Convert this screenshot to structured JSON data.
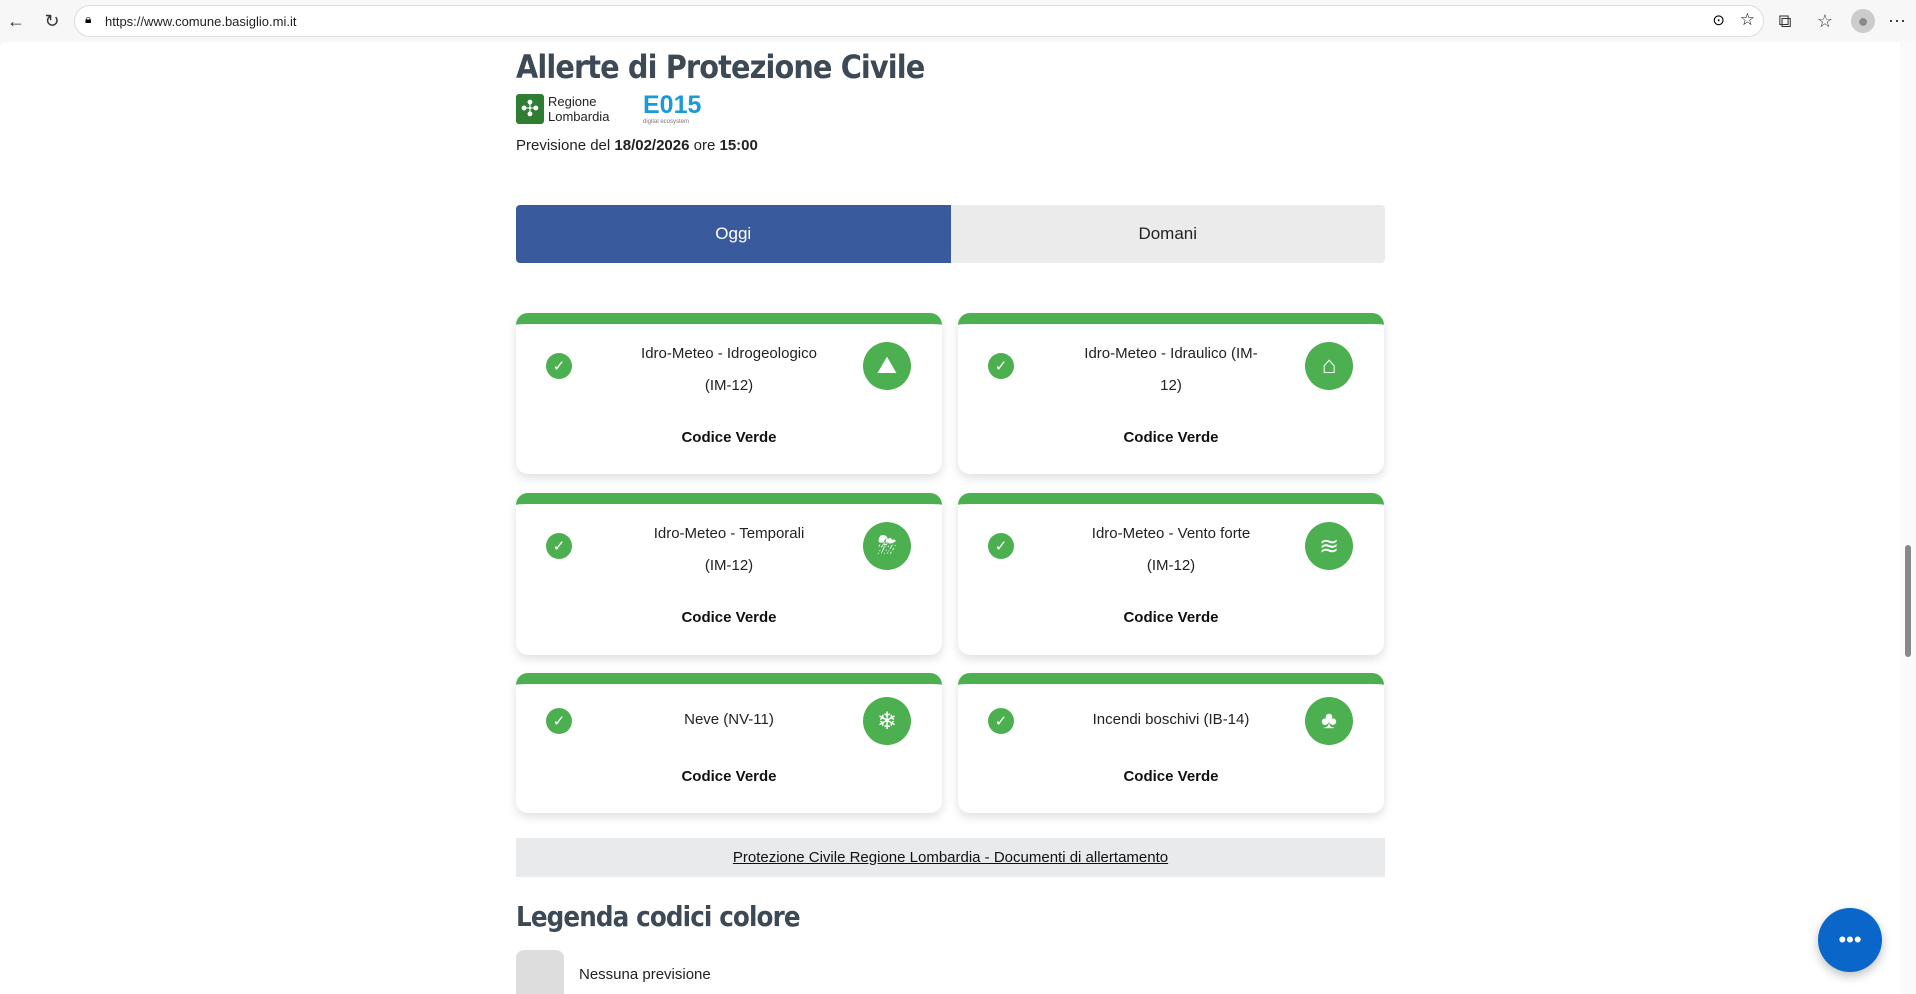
{
  "browser": {
    "url": "https://www.comune.basiglio.mi.it"
  },
  "header": {
    "title": "Allerte di Protezione Civile",
    "logo_regione": "Regione Lombardia",
    "logo_e015": "E015",
    "logo_e015_sub": "digital ecosystem",
    "forecast_prefix": "Previsione del",
    "forecast_date": "18/02/2026",
    "forecast_mid": "ore",
    "forecast_time": "15:00"
  },
  "tabs": [
    {
      "label": "Oggi",
      "active": true
    },
    {
      "label": "Domani",
      "active": false
    }
  ],
  "accent": "#3a5a9e",
  "green": "#4caf50",
  "cards": [
    {
      "line1": "Idro-Meteo - Idrogeologico",
      "line2": "(IM-12)",
      "code": "Codice Verde",
      "icon": "landslide-icon"
    },
    {
      "line1": "Idro-Meteo - Idraulico (IM-",
      "line2": "12)",
      "code": "Codice Verde",
      "icon": "flood-house-icon"
    },
    {
      "line1": "Idro-Meteo - Temporali",
      "line2": "(IM-12)",
      "code": "Codice Verde",
      "icon": "storm-cloud-icon"
    },
    {
      "line1": "Idro-Meteo - Vento forte",
      "line2": "(IM-12)",
      "code": "Codice Verde",
      "icon": "wind-icon"
    },
    {
      "line1": "Neve (NV-11)",
      "line2": "",
      "code": "Codice Verde",
      "icon": "snowflake-icon"
    },
    {
      "line1": "Incendi boschivi (IB-14)",
      "line2": "",
      "code": "Codice Verde",
      "icon": "forest-fire-icon"
    }
  ],
  "link": "Protezione Civile Regione Lombardia - Documenti di allertamento",
  "legend": {
    "title": "Legenda codici colore",
    "items": [
      {
        "label": "Nessuna previsione"
      }
    ]
  }
}
